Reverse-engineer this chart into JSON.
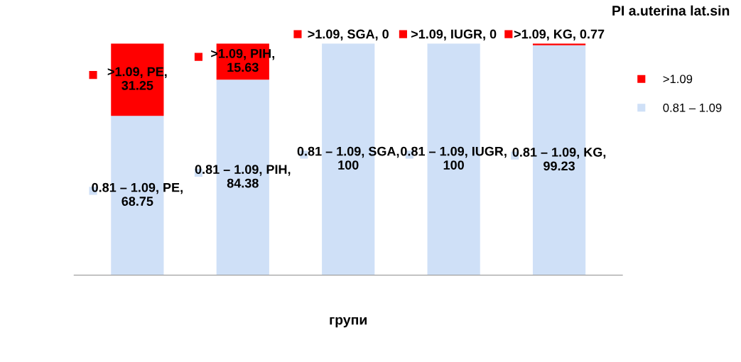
{
  "chart_data": {
    "type": "bar",
    "stacked": true,
    "title": "PI a.uterina lat.sin",
    "xlabel": "групи",
    "categories": [
      null,
      null,
      null,
      null,
      null
    ],
    "series": [
      {
        "name": "0.81 – 1.09",
        "color": "#cfe0f7",
        "values": [
          68.75,
          84.38,
          100,
          100,
          99.23
        ],
        "value_labels": [
          "0.81 – 1.09, PE, 68.75",
          "0.81 – 1.09, PIH, 84.38",
          "0.81 – 1.09, SGA, 100",
          "0.81 – 1.09, IUGR, 100",
          "0.81 – 1.09, KG, 99.23"
        ]
      },
      {
        "name": ">1.09",
        "color": "#ff0000",
        "values": [
          31.25,
          15.63,
          0,
          0,
          0.77
        ],
        "value_labels": [
          ">1.09, PE, 31.25",
          ">1.09, PIH, 15.63",
          ">1.09, SGA, 0",
          ">1.09, IUGR, 0",
          ">1.09, KG, 0.77"
        ]
      }
    ],
    "ylim": [
      0,
      100
    ],
    "tick_labels": false,
    "grid": false,
    "legend": "right"
  }
}
